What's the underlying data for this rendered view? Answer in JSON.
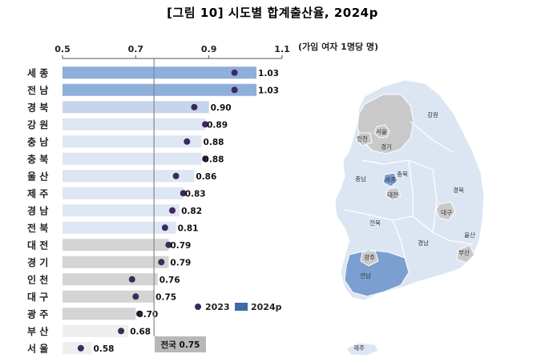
{
  "title": "[그림 10] 시도별 합계출산율, 2024p",
  "unit_label": "(가임 여자 1명당 명)",
  "legend": {
    "dot_label": "2023",
    "bar_label": "2024p"
  },
  "national_label": "전국 0.75",
  "colors": {
    "bar_dark": "#8eaedb",
    "bar_mid": "#c6d5ec",
    "bar_light": "#dde6f3",
    "bar_gray": "#d4d4d4",
    "bar_lightgray": "#eeeeee",
    "dot": "#3b2a5c",
    "legend_bar": "#3d6aa3",
    "national_line": "#888888",
    "national_box": "#b8b8b8",
    "map_blue_light": "#dce6f2",
    "map_blue_dark": "#7b9fd0",
    "map_gray": "#c9c9c9",
    "map_border": "#ffffff"
  },
  "chart_data": {
    "type": "bar",
    "orientation": "horizontal",
    "xlim": [
      0.5,
      1.1
    ],
    "xticks": [
      "0.5",
      "0.7",
      "0.9",
      "1.1"
    ],
    "reference_line": {
      "label": "전국",
      "value": 0.75
    },
    "categories": [
      "세 종",
      "전 남",
      "경 북",
      "강 원",
      "충 남",
      "충 북",
      "울 산",
      "제 주",
      "경 남",
      "전 북",
      "대 전",
      "경 기",
      "인 천",
      "대 구",
      "광 주",
      "부 산",
      "서 울"
    ],
    "series": [
      {
        "name": "2024p",
        "values": [
          1.03,
          1.03,
          0.9,
          0.89,
          0.88,
          0.88,
          0.86,
          0.83,
          0.82,
          0.81,
          0.79,
          0.79,
          0.76,
          0.75,
          0.7,
          0.68,
          0.58
        ]
      },
      {
        "name": "2023",
        "values": [
          0.97,
          0.97,
          0.86,
          0.89,
          0.84,
          0.89,
          0.81,
          0.83,
          0.8,
          0.78,
          0.79,
          0.77,
          0.69,
          0.7,
          0.71,
          0.66,
          0.55
        ]
      }
    ],
    "value_labels": [
      "1.03",
      "1.03",
      "0.90",
      "0.89",
      "0.88",
      "0.88",
      "0.86",
      "0.83",
      "0.82",
      "0.81",
      "0.79",
      "0.79",
      "0.76",
      "0.75",
      "0.70",
      "0.68",
      "0.58"
    ],
    "bar_color_groups": [
      "dark",
      "dark",
      "mid",
      "light",
      "light",
      "light",
      "light",
      "light",
      "light",
      "light",
      "gray",
      "gray",
      "gray",
      "gray",
      "gray",
      "lightgray",
      "lightgray"
    ]
  },
  "map": {
    "labels": [
      "서울",
      "인천",
      "경기",
      "강원",
      "충남",
      "세종",
      "충북",
      "대전",
      "경북",
      "대구",
      "전북",
      "경남",
      "울산",
      "부산",
      "광주",
      "전남",
      "제주"
    ],
    "highlighted": [
      "세종",
      "전남"
    ],
    "gray": [
      "서울",
      "경기",
      "인천",
      "대구",
      "광주",
      "부산",
      "대전"
    ]
  }
}
